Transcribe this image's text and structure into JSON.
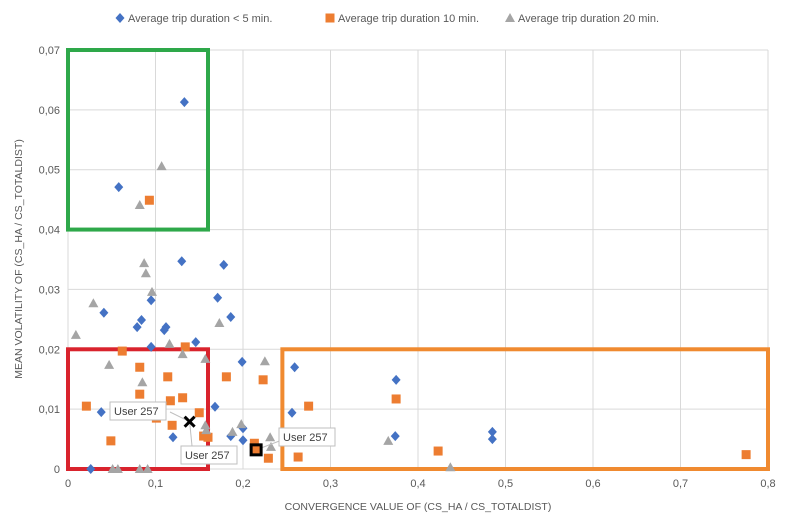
{
  "chart_data": {
    "type": "scatter",
    "title": "",
    "xlabel": "CONVERGENCE VALUE OF (CS_HA / CS_TOTALDIST)",
    "ylabel": "MEAN VOLATILITY OF (CS_HA / CS_TOTALDIST)",
    "xlim": [
      0,
      0.8
    ],
    "ylim": [
      0,
      0.07
    ],
    "x_ticks": [
      "0",
      "0,1",
      "0,2",
      "0,3",
      "0,4",
      "0,5",
      "0,6",
      "0,7",
      "0,8"
    ],
    "y_ticks": [
      "0",
      "0,01",
      "0,02",
      "0,03",
      "0,04",
      "0,05",
      "0,06",
      "0,07"
    ],
    "grid": true,
    "legend_position": "top",
    "series": [
      {
        "name": "Average trip duration < 5 min.",
        "marker": "diamond",
        "color": "#4472C4",
        "points": [
          [
            0.133,
            0.0613
          ],
          [
            0.058,
            0.0471
          ],
          [
            0.13,
            0.0347
          ],
          [
            0.178,
            0.0341
          ],
          [
            0.041,
            0.0261
          ],
          [
            0.095,
            0.0282
          ],
          [
            0.171,
            0.0286
          ],
          [
            0.186,
            0.0254
          ],
          [
            0.084,
            0.0249
          ],
          [
            0.079,
            0.0237
          ],
          [
            0.11,
            0.0232
          ],
          [
            0.112,
            0.0237
          ],
          [
            0.146,
            0.0212
          ],
          [
            0.095,
            0.0204
          ],
          [
            0.199,
            0.0179
          ],
          [
            0.259,
            0.017
          ],
          [
            0.375,
            0.0149
          ],
          [
            0.038,
            0.0095
          ],
          [
            0.12,
            0.0053
          ],
          [
            0.168,
            0.0104
          ],
          [
            0.2,
            0.0048
          ],
          [
            0.2,
            0.0068
          ],
          [
            0.186,
            0.0055
          ],
          [
            0.256,
            0.0094
          ],
          [
            0.374,
            0.0055
          ],
          [
            0.485,
            0.0062
          ],
          [
            0.485,
            0.005
          ],
          [
            0.026,
            0.0
          ]
        ]
      },
      {
        "name": "Average trip duration 10 min.",
        "marker": "square",
        "color": "#ED7D31",
        "points": [
          [
            0.093,
            0.0449
          ],
          [
            0.062,
            0.0197
          ],
          [
            0.134,
            0.0204
          ],
          [
            0.082,
            0.017
          ],
          [
            0.114,
            0.0154
          ],
          [
            0.181,
            0.0154
          ],
          [
            0.223,
            0.0149
          ],
          [
            0.082,
            0.0125
          ],
          [
            0.131,
            0.0119
          ],
          [
            0.117,
            0.0114
          ],
          [
            0.021,
            0.0105
          ],
          [
            0.275,
            0.0105
          ],
          [
            0.375,
            0.0117
          ],
          [
            0.15,
            0.0094
          ],
          [
            0.101,
            0.0085
          ],
          [
            0.119,
            0.0073
          ],
          [
            0.049,
            0.0047
          ],
          [
            0.155,
            0.0055
          ],
          [
            0.16,
            0.0053
          ],
          [
            0.213,
            0.0043
          ],
          [
            0.229,
            0.0018
          ],
          [
            0.263,
            0.002
          ],
          [
            0.423,
            0.003
          ],
          [
            0.775,
            0.0024
          ]
        ]
      },
      {
        "name": "Average trip duration 20 min.",
        "marker": "triangle",
        "color": "#A5A5A5",
        "points": [
          [
            0.107,
            0.0506
          ],
          [
            0.082,
            0.0441
          ],
          [
            0.087,
            0.0344
          ],
          [
            0.089,
            0.0327
          ],
          [
            0.096,
            0.0296
          ],
          [
            0.029,
            0.0277
          ],
          [
            0.009,
            0.0224
          ],
          [
            0.173,
            0.0244
          ],
          [
            0.116,
            0.0209
          ],
          [
            0.131,
            0.0192
          ],
          [
            0.047,
            0.0174
          ],
          [
            0.157,
            0.0184
          ],
          [
            0.225,
            0.018
          ],
          [
            0.085,
            0.0145
          ],
          [
            0.157,
            0.0073
          ],
          [
            0.158,
            0.0065
          ],
          [
            0.188,
            0.0062
          ],
          [
            0.198,
            0.0075
          ],
          [
            0.231,
            0.0053
          ],
          [
            0.232,
            0.0037
          ],
          [
            0.366,
            0.0047
          ],
          [
            0.437,
            0.0003
          ],
          [
            0.051,
            0.0
          ],
          [
            0.057,
            0.0
          ],
          [
            0.082,
            0.0
          ],
          [
            0.091,
            0.0
          ]
        ]
      }
    ],
    "highlights": [
      {
        "label": "User 257",
        "marker": "x",
        "color": "#000000",
        "point": [
          0.139,
          0.0079
        ]
      },
      {
        "label": "User 257",
        "marker": "square-outline",
        "color": "#000000",
        "point": [
          0.215,
          0.0032
        ]
      }
    ],
    "regions": [
      {
        "color": "#2EA84A",
        "x": [
          0,
          0.16
        ],
        "y": [
          0.04,
          0.07
        ]
      },
      {
        "color": "#D9232D",
        "x": [
          0,
          0.16
        ],
        "y": [
          0,
          0.02
        ]
      },
      {
        "color": "#F08A30",
        "x": [
          0.245,
          0.8
        ],
        "y": [
          0,
          0.02
        ]
      }
    ]
  }
}
